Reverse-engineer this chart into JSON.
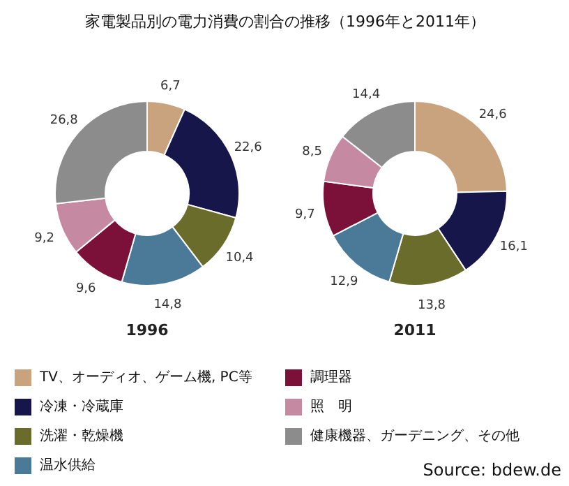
{
  "chart_data": [
    {
      "type": "donut",
      "title": "家電製品別の電力消費の割合の推移（1996年と2011年）",
      "subtitle": "1996",
      "categories": [
        "TV、オーディオ、ゲーム機, PC等",
        "冷凍・冷蔵庫",
        "洗濯・乾燥機",
        "温水供給",
        "調理器",
        "照　明",
        "健康機器、ガーデニング、その他"
      ],
      "values": [
        6.7,
        22.6,
        10.4,
        14.8,
        9.6,
        9.2,
        26.8
      ],
      "colors": [
        "#c9a27e",
        "#16164a",
        "#6a6c2c",
        "#4b7a98",
        "#7b1038",
        "#c58aa2",
        "#8c8c8c"
      ],
      "value_labels": [
        "6,7",
        "22,6",
        "10,4",
        "14,8",
        "9,6",
        "9,2",
        "26,8"
      ],
      "legend": "bottom",
      "annotations": [
        "Source: bdew.de"
      ]
    },
    {
      "type": "donut",
      "subtitle": "2011",
      "values": [
        24.6,
        16.1,
        13.8,
        12.9,
        9.7,
        8.5,
        14.4
      ],
      "colors": [
        "#c9a27e",
        "#16164a",
        "#6a6c2c",
        "#4b7a98",
        "#7b1038",
        "#c58aa2",
        "#8c8c8c"
      ],
      "value_labels": [
        "24,6",
        "16,1",
        "13,8",
        "12,9",
        "9,7",
        "8,5",
        "14,4"
      ]
    }
  ]
}
